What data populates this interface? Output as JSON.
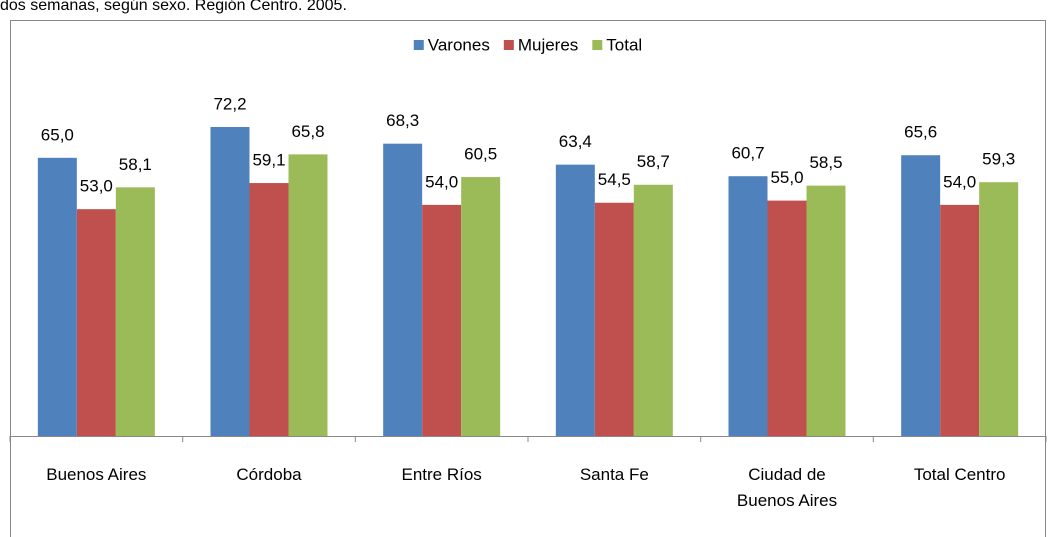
{
  "chart_data": {
    "type": "bar",
    "title": "dos semanas, según sexo. Región Centro. 2005.",
    "categories": [
      "Buenos Aires",
      "Córdoba",
      "Entre Ríos",
      "Santa Fe",
      "Ciudad de Buenos Aires",
      "Total Centro"
    ],
    "series": [
      {
        "name": "Varones",
        "color": "#4f81bd",
        "values": [
          65.0,
          72.2,
          68.3,
          63.4,
          60.7,
          65.6
        ],
        "value_labels": [
          "65,0",
          "72,2",
          "68,3",
          "63,4",
          "60,7",
          "65,6"
        ]
      },
      {
        "name": "Mujeres",
        "color": "#c0504d",
        "values": [
          53.0,
          59.1,
          54.0,
          54.5,
          55.0,
          54.0
        ],
        "value_labels": [
          "53,0",
          "59,1",
          "54,0",
          "54,5",
          "55,0",
          "54,0"
        ]
      },
      {
        "name": "Total",
        "color": "#9bbb59",
        "values": [
          58.1,
          65.8,
          60.5,
          58.7,
          58.5,
          59.3
        ],
        "value_labels": [
          "58,1",
          "65,8",
          "60,5",
          "58,7",
          "58,5",
          "59,3"
        ]
      }
    ],
    "legend": "top"
  }
}
